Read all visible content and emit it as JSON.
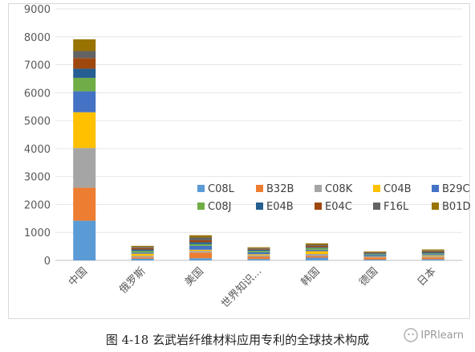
{
  "caption": "图 4-18  玄武岩纤维材料应用专利的全球技术构成",
  "watermark": "IPRlearn",
  "chart_data": {
    "type": "bar",
    "stacked": true,
    "categories": [
      "中国",
      "俄罗斯",
      "美国",
      "世界知识...",
      "韩国",
      "德国",
      "日本"
    ],
    "ylim": [
      0,
      9000
    ],
    "yticks": [
      0,
      1000,
      2000,
      3000,
      4000,
      5000,
      6000,
      7000,
      8000,
      9000
    ],
    "grid": true,
    "legend_position": "right",
    "series": [
      {
        "name": "C08L",
        "color": "#5b9bd5",
        "values": [
          1420,
          60,
          80,
          50,
          100,
          30,
          40
        ]
      },
      {
        "name": "B32B",
        "color": "#ed7d31",
        "values": [
          1180,
          50,
          200,
          80,
          60,
          80,
          70
        ]
      },
      {
        "name": "C08K",
        "color": "#a5a5a5",
        "values": [
          1420,
          50,
          60,
          50,
          70,
          20,
          40
        ]
      },
      {
        "name": "C04B",
        "color": "#ffc000",
        "values": [
          1280,
          80,
          40,
          40,
          100,
          10,
          30
        ]
      },
      {
        "name": "B29C",
        "color": "#4472c4",
        "values": [
          750,
          40,
          140,
          70,
          50,
          50,
          40
        ]
      },
      {
        "name": "C08J",
        "color": "#70ad47",
        "values": [
          480,
          60,
          60,
          50,
          60,
          30,
          30
        ]
      },
      {
        "name": "E04B",
        "color": "#255e91",
        "values": [
          330,
          50,
          70,
          40,
          30,
          30,
          40
        ]
      },
      {
        "name": "E04C",
        "color": "#9e480e",
        "values": [
          380,
          50,
          70,
          30,
          50,
          20,
          30
        ]
      },
      {
        "name": "F16L",
        "color": "#636363",
        "values": [
          250,
          40,
          100,
          30,
          40,
          20,
          30
        ]
      },
      {
        "name": "B01D",
        "color": "#997300",
        "values": [
          420,
          40,
          80,
          30,
          50,
          30,
          40
        ]
      }
    ]
  }
}
